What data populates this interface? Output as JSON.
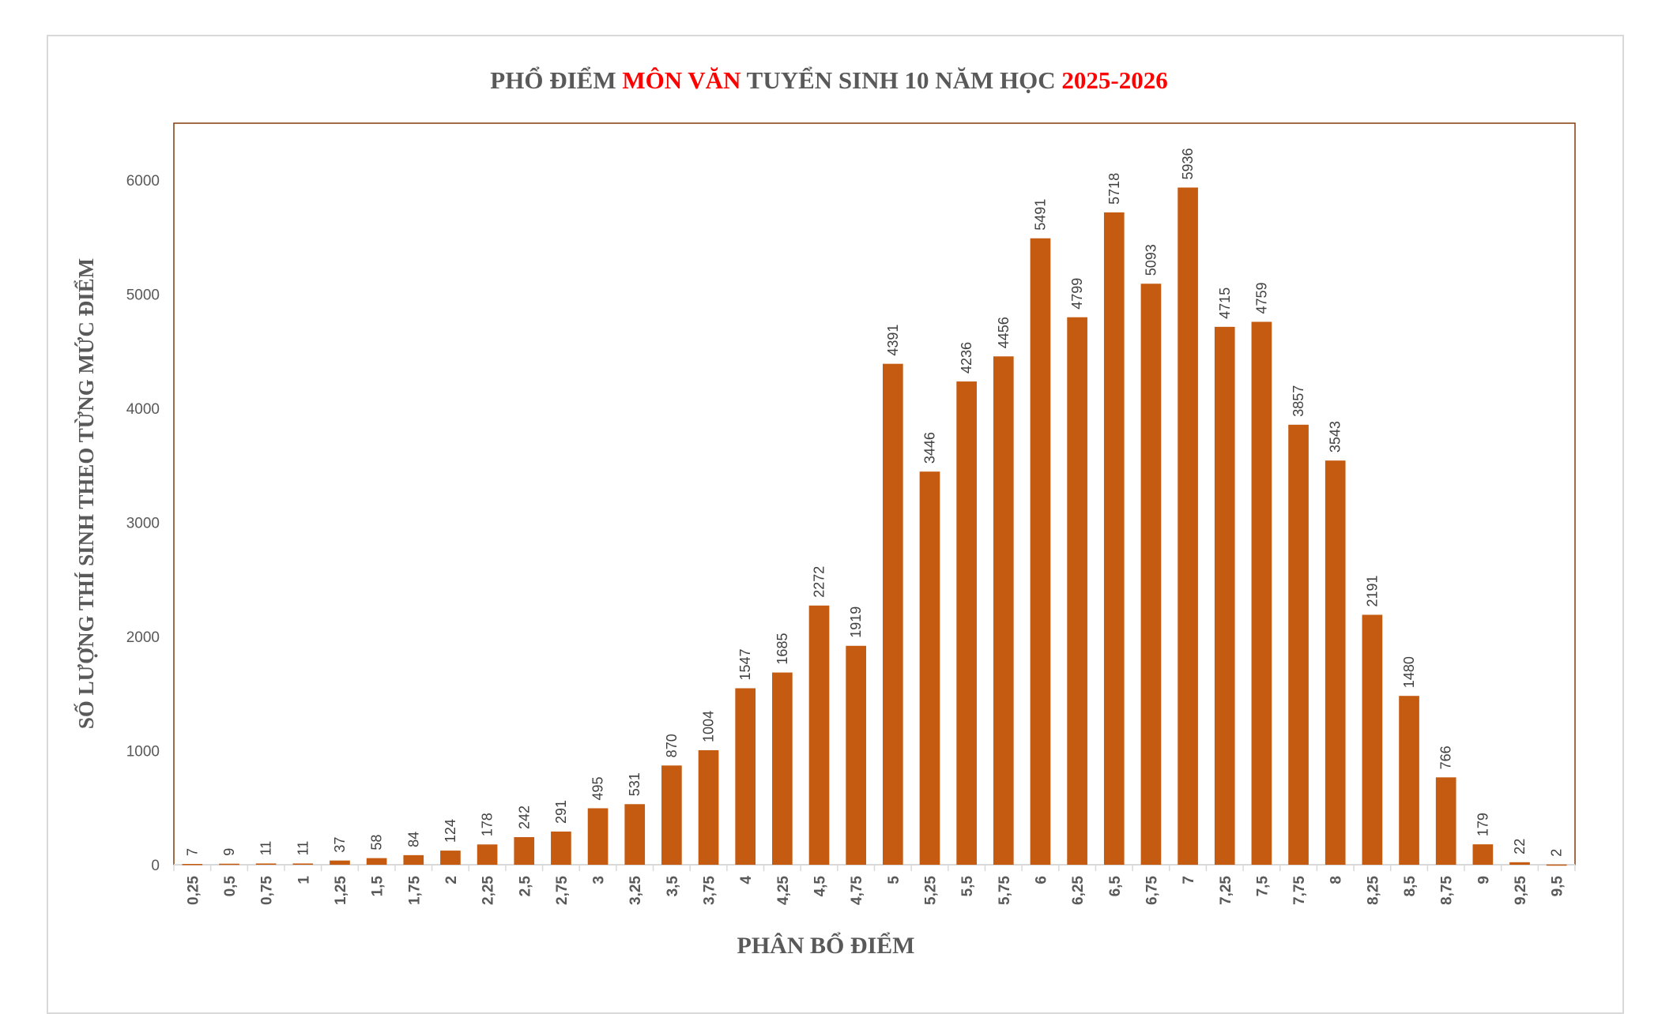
{
  "chart_data": {
    "type": "bar",
    "title_parts": [
      {
        "text": "PHỔ ĐIỂM ",
        "color": "#595959"
      },
      {
        "text": "MÔN VĂN",
        "color": "#ff0000"
      },
      {
        "text": " TUYỂN SINH 10 NĂM HỌC ",
        "color": "#595959"
      },
      {
        "text": "2025-2026",
        "color": "#ff0000"
      }
    ],
    "xlabel": "PHÂN BỔ ĐIỂM",
    "ylabel": "SỐ LƯỢNG THÍ SINH THEO TỪNG MỨC ĐIỂM",
    "categories": [
      "0,25",
      "0,5",
      "0,75",
      "1",
      "1,25",
      "1,5",
      "1,75",
      "2",
      "2,25",
      "2,5",
      "2,75",
      "3",
      "3,25",
      "3,5",
      "3,75",
      "4",
      "4,25",
      "4,5",
      "4,75",
      "5",
      "5,25",
      "5,5",
      "5,75",
      "6",
      "6,25",
      "6,5",
      "6,75",
      "7",
      "7,25",
      "7,5",
      "7,75",
      "8",
      "8,25",
      "8,5",
      "8,75",
      "9",
      "9,25",
      "9,5"
    ],
    "values": [
      7,
      9,
      11,
      11,
      37,
      58,
      84,
      124,
      178,
      242,
      291,
      495,
      531,
      870,
      1004,
      1547,
      1685,
      2272,
      1919,
      4391,
      3446,
      4236,
      4456,
      5491,
      4799,
      5718,
      5093,
      5936,
      4715,
      4759,
      3857,
      3543,
      2191,
      1480,
      766,
      179,
      22,
      2
    ],
    "ylim": [
      0,
      6500
    ],
    "yticks": [
      0,
      1000,
      2000,
      3000,
      4000,
      5000,
      6000
    ],
    "grid": false,
    "data_labels": true,
    "bar_color": "#C55A11",
    "plot_border_color": "#843C0C"
  }
}
